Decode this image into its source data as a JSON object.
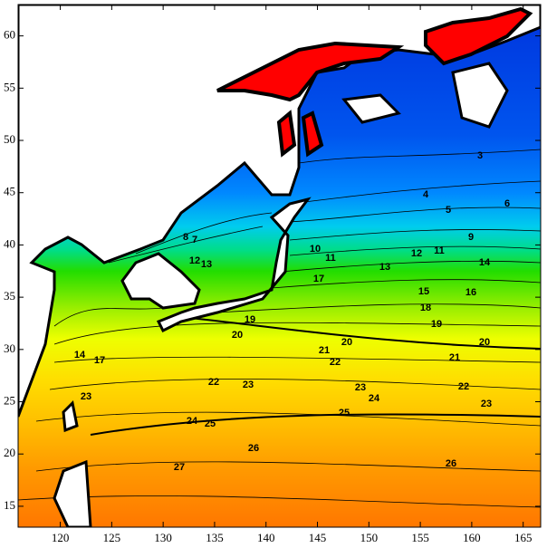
{
  "map": {
    "xlim": [
      115.9,
      166.7
    ],
    "ylim": [
      13,
      63
    ],
    "xticks": [
      120,
      125,
      130,
      135,
      140,
      145,
      150,
      155,
      160,
      165
    ],
    "yticks": [
      15,
      20,
      25,
      30,
      35,
      40,
      45,
      50,
      55,
      60
    ],
    "contour_labels": [
      3,
      4,
      5,
      6,
      9,
      12,
      11,
      14,
      16,
      13,
      15,
      17,
      18,
      19,
      20,
      20,
      20,
      21,
      21,
      22,
      22,
      23,
      23,
      24,
      25,
      26,
      26,
      27,
      22,
      23,
      23,
      24,
      25,
      19,
      13,
      12,
      10,
      11,
      8,
      7,
      17,
      14
    ]
  }
}
